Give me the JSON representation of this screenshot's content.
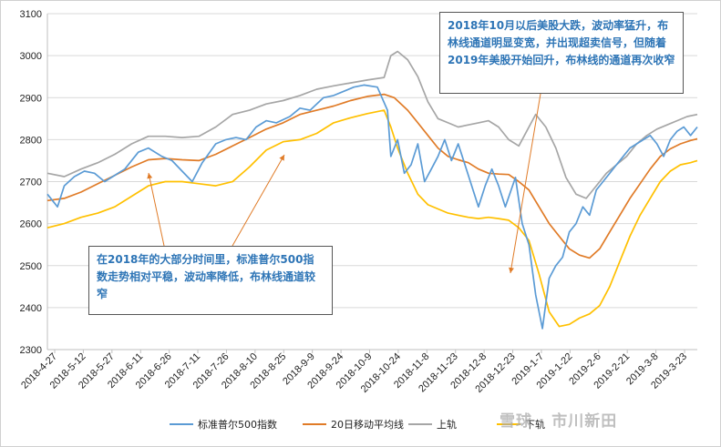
{
  "chart_data": {
    "type": "line",
    "title": "",
    "xlabel": "",
    "ylabel": "",
    "ylim": [
      2300,
      3100
    ],
    "yticks": [
      2300,
      2400,
      2500,
      2600,
      2700,
      2800,
      2900,
      3000,
      3100
    ],
    "x_tick_labels": [
      "2018-4-27",
      "2018-5-12",
      "2018-5-27",
      "2018-6-11",
      "2018-6-26",
      "2018-7-11",
      "2018-7-26",
      "2018-8-10",
      "2018-8-25",
      "2018-9-9",
      "2018-9-24",
      "2018-10-9",
      "2018-10-24",
      "2018-11-8",
      "2018-11-23",
      "2018-12-8",
      "2018-12-23",
      "2019-1-7",
      "2019-1-22",
      "2019-2-6",
      "2019-2-21",
      "2019-3-8",
      "2019-3-23"
    ],
    "grid": "horizontal",
    "legend_position": "bottom",
    "series": [
      {
        "name": "标准普尔500指数",
        "color": "#5b9bd5",
        "points": [
          [
            0,
            2670
          ],
          [
            3,
            2640
          ],
          [
            5,
            2690
          ],
          [
            8,
            2712
          ],
          [
            11,
            2725
          ],
          [
            14,
            2720
          ],
          [
            17,
            2700
          ],
          [
            20,
            2715
          ],
          [
            23,
            2730
          ],
          [
            27,
            2770
          ],
          [
            30,
            2780
          ],
          [
            34,
            2760
          ],
          [
            37,
            2750
          ],
          [
            40,
            2725
          ],
          [
            43,
            2700
          ],
          [
            46,
            2745
          ],
          [
            50,
            2790
          ],
          [
            53,
            2800
          ],
          [
            56,
            2805
          ],
          [
            59,
            2800
          ],
          [
            62,
            2830
          ],
          [
            65,
            2845
          ],
          [
            68,
            2840
          ],
          [
            72,
            2855
          ],
          [
            75,
            2875
          ],
          [
            78,
            2870
          ],
          [
            82,
            2900
          ],
          [
            85,
            2905
          ],
          [
            88,
            2915
          ],
          [
            91,
            2925
          ],
          [
            94,
            2930
          ],
          [
            98,
            2925
          ],
          [
            101,
            2870
          ],
          [
            102,
            2760
          ],
          [
            104,
            2800
          ],
          [
            106,
            2720
          ],
          [
            108,
            2740
          ],
          [
            110,
            2790
          ],
          [
            112,
            2700
          ],
          [
            114,
            2730
          ],
          [
            116,
            2760
          ],
          [
            118,
            2800
          ],
          [
            120,
            2750
          ],
          [
            122,
            2790
          ],
          [
            124,
            2740
          ],
          [
            126,
            2690
          ],
          [
            128,
            2640
          ],
          [
            130,
            2690
          ],
          [
            132,
            2730
          ],
          [
            134,
            2690
          ],
          [
            136,
            2640
          ],
          [
            139,
            2710
          ],
          [
            141,
            2600
          ],
          [
            143,
            2550
          ],
          [
            145,
            2430
          ],
          [
            147,
            2350
          ],
          [
            149,
            2470
          ],
          [
            151,
            2500
          ],
          [
            153,
            2520
          ],
          [
            155,
            2580
          ],
          [
            157,
            2600
          ],
          [
            159,
            2640
          ],
          [
            161,
            2620
          ],
          [
            163,
            2680
          ],
          [
            165,
            2700
          ],
          [
            167,
            2720
          ],
          [
            169,
            2740
          ],
          [
            171,
            2760
          ],
          [
            173,
            2780
          ],
          [
            175,
            2790
          ],
          [
            177,
            2800
          ],
          [
            179,
            2810
          ],
          [
            181,
            2790
          ],
          [
            183,
            2760
          ],
          [
            185,
            2800
          ],
          [
            187,
            2820
          ],
          [
            189,
            2830
          ],
          [
            191,
            2810
          ],
          [
            193,
            2830
          ]
        ]
      },
      {
        "name": "20日移动平均线",
        "color": "#e07b27",
        "points": [
          [
            0,
            2655
          ],
          [
            5,
            2660
          ],
          [
            10,
            2675
          ],
          [
            15,
            2695
          ],
          [
            20,
            2715
          ],
          [
            25,
            2735
          ],
          [
            30,
            2752
          ],
          [
            35,
            2755
          ],
          [
            40,
            2752
          ],
          [
            45,
            2750
          ],
          [
            50,
            2765
          ],
          [
            55,
            2785
          ],
          [
            60,
            2805
          ],
          [
            65,
            2825
          ],
          [
            70,
            2840
          ],
          [
            75,
            2860
          ],
          [
            80,
            2870
          ],
          [
            85,
            2880
          ],
          [
            90,
            2893
          ],
          [
            95,
            2903
          ],
          [
            100,
            2908
          ],
          [
            103,
            2900
          ],
          [
            107,
            2870
          ],
          [
            110,
            2840
          ],
          [
            113,
            2810
          ],
          [
            116,
            2780
          ],
          [
            119,
            2760
          ],
          [
            122,
            2752
          ],
          [
            125,
            2745
          ],
          [
            128,
            2730
          ],
          [
            131,
            2720
          ],
          [
            134,
            2718
          ],
          [
            137,
            2717
          ],
          [
            140,
            2700
          ],
          [
            143,
            2680
          ],
          [
            146,
            2640
          ],
          [
            149,
            2600
          ],
          [
            152,
            2570
          ],
          [
            155,
            2540
          ],
          [
            158,
            2525
          ],
          [
            161,
            2518
          ],
          [
            164,
            2540
          ],
          [
            167,
            2580
          ],
          [
            170,
            2620
          ],
          [
            173,
            2660
          ],
          [
            176,
            2695
          ],
          [
            179,
            2730
          ],
          [
            182,
            2760
          ],
          [
            185,
            2778
          ],
          [
            188,
            2790
          ],
          [
            191,
            2798
          ],
          [
            193,
            2802
          ]
        ]
      },
      {
        "name": "上轨",
        "color": "#a6a6a6",
        "points": [
          [
            0,
            2720
          ],
          [
            5,
            2712
          ],
          [
            10,
            2730
          ],
          [
            15,
            2745
          ],
          [
            20,
            2765
          ],
          [
            25,
            2790
          ],
          [
            30,
            2808
          ],
          [
            35,
            2808
          ],
          [
            40,
            2805
          ],
          [
            45,
            2808
          ],
          [
            50,
            2830
          ],
          [
            55,
            2860
          ],
          [
            60,
            2870
          ],
          [
            65,
            2885
          ],
          [
            70,
            2893
          ],
          [
            75,
            2905
          ],
          [
            80,
            2920
          ],
          [
            85,
            2928
          ],
          [
            90,
            2935
          ],
          [
            95,
            2942
          ],
          [
            100,
            2948
          ],
          [
            102,
            3000
          ],
          [
            104,
            3010
          ],
          [
            107,
            2990
          ],
          [
            110,
            2950
          ],
          [
            113,
            2890
          ],
          [
            116,
            2850
          ],
          [
            119,
            2840
          ],
          [
            122,
            2830
          ],
          [
            125,
            2835
          ],
          [
            128,
            2840
          ],
          [
            131,
            2845
          ],
          [
            134,
            2830
          ],
          [
            137,
            2800
          ],
          [
            140,
            2785
          ],
          [
            143,
            2830
          ],
          [
            145,
            2860
          ],
          [
            148,
            2830
          ],
          [
            151,
            2780
          ],
          [
            154,
            2710
          ],
          [
            157,
            2670
          ],
          [
            160,
            2660
          ],
          [
            163,
            2690
          ],
          [
            166,
            2720
          ],
          [
            169,
            2740
          ],
          [
            172,
            2760
          ],
          [
            175,
            2790
          ],
          [
            178,
            2810
          ],
          [
            181,
            2825
          ],
          [
            184,
            2835
          ],
          [
            187,
            2845
          ],
          [
            190,
            2855
          ],
          [
            193,
            2860
          ]
        ]
      },
      {
        "name": "下轨",
        "color": "#ffc000",
        "points": [
          [
            0,
            2590
          ],
          [
            5,
            2600
          ],
          [
            10,
            2615
          ],
          [
            15,
            2625
          ],
          [
            20,
            2640
          ],
          [
            25,
            2665
          ],
          [
            30,
            2690
          ],
          [
            35,
            2700
          ],
          [
            40,
            2700
          ],
          [
            45,
            2695
          ],
          [
            50,
            2690
          ],
          [
            55,
            2700
          ],
          [
            60,
            2735
          ],
          [
            65,
            2775
          ],
          [
            70,
            2795
          ],
          [
            75,
            2800
          ],
          [
            80,
            2815
          ],
          [
            85,
            2840
          ],
          [
            90,
            2852
          ],
          [
            95,
            2862
          ],
          [
            100,
            2870
          ],
          [
            102,
            2830
          ],
          [
            104,
            2780
          ],
          [
            107,
            2720
          ],
          [
            110,
            2670
          ],
          [
            113,
            2645
          ],
          [
            116,
            2635
          ],
          [
            119,
            2625
          ],
          [
            122,
            2620
          ],
          [
            125,
            2615
          ],
          [
            128,
            2612
          ],
          [
            131,
            2615
          ],
          [
            134,
            2612
          ],
          [
            137,
            2608
          ],
          [
            140,
            2590
          ],
          [
            143,
            2560
          ],
          [
            146,
            2480
          ],
          [
            149,
            2390
          ],
          [
            152,
            2355
          ],
          [
            155,
            2360
          ],
          [
            158,
            2375
          ],
          [
            161,
            2385
          ],
          [
            164,
            2405
          ],
          [
            167,
            2450
          ],
          [
            170,
            2510
          ],
          [
            173,
            2570
          ],
          [
            176,
            2620
          ],
          [
            179,
            2660
          ],
          [
            182,
            2700
          ],
          [
            185,
            2725
          ],
          [
            188,
            2740
          ],
          [
            191,
            2745
          ],
          [
            193,
            2750
          ]
        ]
      }
    ],
    "annotations": [
      {
        "text": "2018年10月以后美股大跌，波动率猛升，布林线通道明显变宽，并出现超卖信号，但随着2019年美股开始回升，布林线的通道再次收窄"
      },
      {
        "text": "在2018年的大部分时间里，标准普尔500指数走势相对平稳，波动率降低，布林线通道较窄"
      }
    ]
  },
  "legend": [
    "标准普尔500指数",
    "20日移动平均线",
    "上轨",
    "下轨"
  ],
  "watermark": "雪球 · 市川新田"
}
